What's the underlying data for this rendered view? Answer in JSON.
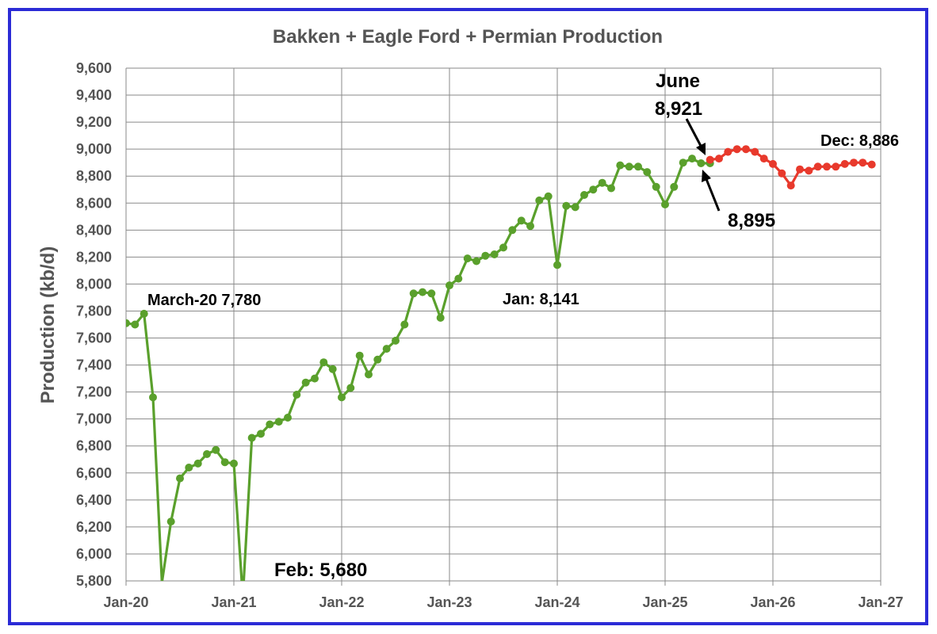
{
  "chart_data": {
    "type": "line",
    "title": "Bakken + Eagle Ford + Permian Production",
    "ylabel": "Production (kb/d)",
    "xlabel": "",
    "ylim": [
      5800,
      9600
    ],
    "yticks": [
      5800,
      6000,
      6200,
      6400,
      6600,
      6800,
      7000,
      7200,
      7400,
      7600,
      7800,
      8000,
      8200,
      8400,
      8600,
      8800,
      9000,
      9200,
      9400,
      9600
    ],
    "ytick_labels": [
      "5,800",
      "6,000",
      "6,200",
      "6,400",
      "6,600",
      "6,800",
      "7,000",
      "7,200",
      "7,400",
      "7,600",
      "7,800",
      "8,000",
      "8,200",
      "8,400",
      "8,600",
      "8,800",
      "9,000",
      "9,200",
      "9,400",
      "9,600"
    ],
    "xtick_labels": [
      "Jan-20",
      "Jan-21",
      "Jan-22",
      "Jan-23",
      "Jan-24",
      "Jan-25",
      "Jan-26",
      "Jan-27"
    ],
    "grid": true,
    "series": [
      {
        "color": "#5aa02c",
        "x": [
          "2020-01",
          "2020-02",
          "2020-03",
          "2020-04",
          "2020-05",
          "2020-06",
          "2020-07",
          "2020-08",
          "2020-09",
          "2020-10",
          "2020-11",
          "2020-12",
          "2021-01",
          "2021-02",
          "2021-03",
          "2021-04",
          "2021-05",
          "2021-06",
          "2021-07",
          "2021-08",
          "2021-09",
          "2021-10",
          "2021-11",
          "2021-12",
          "2022-01",
          "2022-02",
          "2022-03",
          "2022-04",
          "2022-05",
          "2022-06",
          "2022-07",
          "2022-08",
          "2022-09",
          "2022-10",
          "2022-11",
          "2022-12",
          "2023-01",
          "2023-02",
          "2023-03",
          "2023-04",
          "2023-05",
          "2023-06",
          "2023-07",
          "2023-08",
          "2023-09",
          "2023-10",
          "2023-11",
          "2023-12",
          "2024-01",
          "2024-02",
          "2024-03",
          "2024-04",
          "2024-05",
          "2024-06",
          "2024-07",
          "2024-08",
          "2024-09",
          "2024-10",
          "2024-11",
          "2024-12",
          "2025-01",
          "2025-02",
          "2025-03",
          "2025-04",
          "2025-05",
          "2025-06"
        ],
        "values": [
          7710,
          7700,
          7780,
          7160,
          5790,
          6240,
          6560,
          6640,
          6670,
          6740,
          6770,
          6680,
          6670,
          5680,
          6860,
          6890,
          6960,
          6980,
          7010,
          7180,
          7270,
          7300,
          7420,
          7370,
          7160,
          7230,
          7470,
          7330,
          7440,
          7520,
          7580,
          7700,
          7930,
          7940,
          7930,
          7750,
          7990,
          8040,
          8190,
          8170,
          8210,
          8220,
          8270,
          8400,
          8470,
          8430,
          8620,
          8650,
          8141,
          8580,
          8570,
          8660,
          8700,
          8750,
          8710,
          8880,
          8870,
          8870,
          8830,
          8720,
          8590,
          8720,
          8900,
          8930,
          8895,
          8895
        ]
      },
      {
        "color": "#e8392c",
        "x": [
          "2025-06",
          "2025-07",
          "2025-08",
          "2025-09",
          "2025-10",
          "2025-11",
          "2025-12",
          "2026-01",
          "2026-02",
          "2026-03",
          "2026-04",
          "2026-05",
          "2026-06",
          "2026-07",
          "2026-08",
          "2026-09",
          "2026-10",
          "2026-11",
          "2026-12"
        ],
        "values": [
          8921,
          8930,
          8980,
          9000,
          9000,
          8980,
          8930,
          8890,
          8820,
          8730,
          8850,
          8840,
          8870,
          8870,
          8870,
          8890,
          8900,
          8900,
          8886
        ]
      }
    ],
    "annotations": [
      {
        "id": "march20",
        "text": "March-20 7,780"
      },
      {
        "id": "feb",
        "text": "Feb: 5,680"
      },
      {
        "id": "jan",
        "text": "Jan: 8,141"
      },
      {
        "id": "june_label",
        "text": "June"
      },
      {
        "id": "june_value",
        "text": "8,921"
      },
      {
        "id": "may_value",
        "text": "8,895"
      },
      {
        "id": "dec",
        "text": "Dec: 8,886"
      }
    ]
  }
}
